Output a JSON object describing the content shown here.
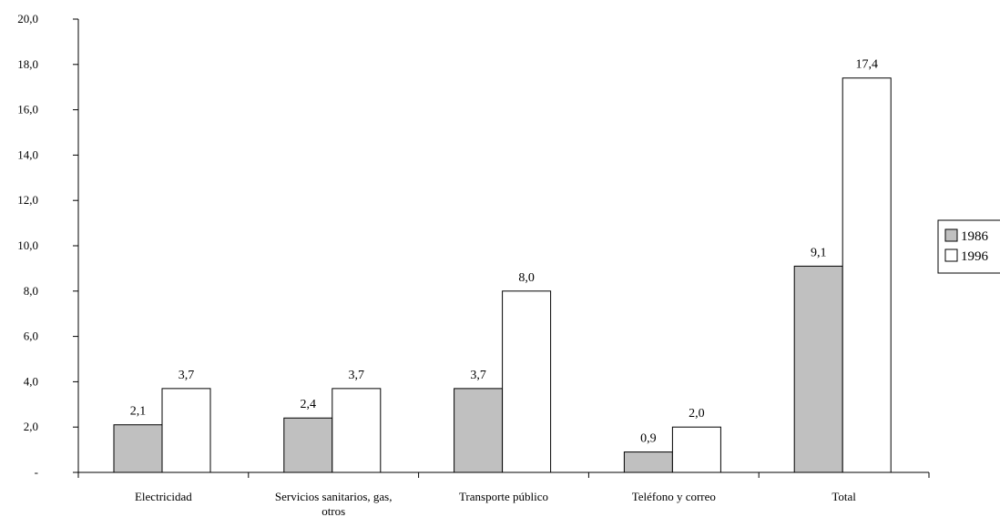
{
  "chart_data": {
    "type": "bar",
    "title": "",
    "xlabel": "",
    "ylabel": "",
    "categories": [
      [
        "Electricidad"
      ],
      [
        "Servicios sanitarios, gas,",
        "otros"
      ],
      [
        "Transporte público"
      ],
      [
        "Teléfono y correo"
      ],
      [
        "Total"
      ]
    ],
    "series": [
      {
        "name": "1986",
        "color": "#c0c0c0",
        "values": [
          2.1,
          2.4,
          3.7,
          0.9,
          9.1
        ],
        "labels": [
          "2,1",
          "2,4",
          "3,7",
          "0,9",
          "9,1"
        ]
      },
      {
        "name": "1996",
        "color": "#ffffff",
        "values": [
          3.7,
          3.7,
          8.0,
          2.0,
          17.4
        ],
        "labels": [
          "3,7",
          "3,7",
          "8,0",
          "2,0",
          "17,4"
        ]
      }
    ],
    "ylim": [
      0,
      20
    ],
    "yticks": [
      0,
      2,
      4,
      6,
      8,
      10,
      12,
      14,
      16,
      18,
      20
    ],
    "ytick_labels": [
      "-",
      "2,0",
      "4,0",
      "6,0",
      "8,0",
      "10,0",
      "12,0",
      "14,0",
      "16,0",
      "18,0",
      "20,0"
    ],
    "grid": false,
    "legend_position": "right"
  }
}
